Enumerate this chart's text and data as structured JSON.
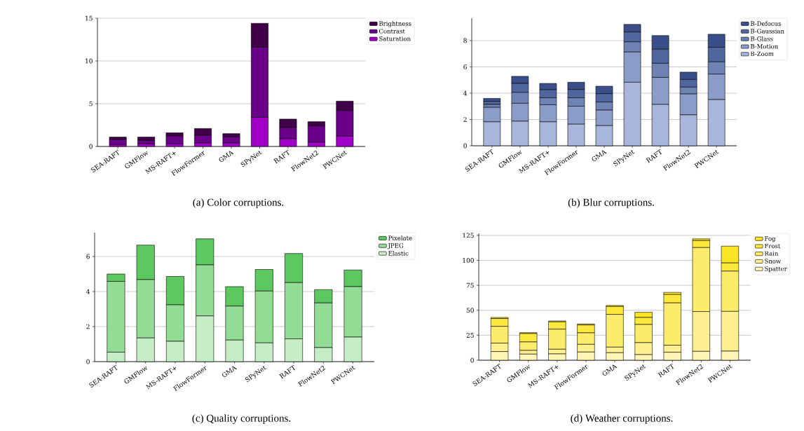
{
  "chart_data": [
    {
      "type": "bar",
      "title": "(a) Color corruptions.",
      "stacked": true,
      "grid": "y",
      "legend": "top right",
      "categories": [
        "SEA-RAFT",
        "GMFlow",
        "MS-RAFT+",
        "FlowFormer",
        "GMA",
        "SPyNet",
        "RAFT",
        "FlowNet2",
        "PWCNet"
      ],
      "ylim": [
        0,
        15
      ],
      "yticks": [
        0,
        5,
        10,
        15
      ],
      "series": [
        {
          "name": "Saturation",
          "color": "#a000c8",
          "values": [
            0.2,
            0.3,
            0.3,
            0.4,
            0.4,
            3.4,
            0.9,
            0.5,
            1.2
          ]
        },
        {
          "name": "Contrast",
          "color": "#6a008a",
          "values": [
            0.6,
            0.4,
            0.9,
            0.9,
            0.7,
            8.2,
            1.3,
            1.9,
            3.0
          ]
        },
        {
          "name": "Brightness",
          "color": "#3f0048",
          "values": [
            0.3,
            0.4,
            0.4,
            0.8,
            0.4,
            2.8,
            1.0,
            0.5,
            1.1
          ]
        }
      ]
    },
    {
      "type": "bar",
      "title": "(b) Blur corruptions.",
      "stacked": true,
      "grid": "y",
      "legend": "top right",
      "categories": [
        "SEA-RAFT",
        "GMFlow",
        "MS-RAFT+",
        "FlowFormer",
        "GMA",
        "SPyNet",
        "RAFT",
        "FlowNet2",
        "PWCNet"
      ],
      "ylim": [
        0,
        9.7
      ],
      "yticks": [
        0,
        2,
        4,
        6,
        8
      ],
      "series": [
        {
          "name": "B-Zoom",
          "color": "#a8b6dc",
          "values": [
            1.82,
            1.87,
            1.82,
            1.64,
            1.53,
            4.83,
            3.14,
            2.35,
            3.51
          ]
        },
        {
          "name": "B-Motion",
          "color": "#8b9cc8",
          "values": [
            1.1,
            1.36,
            1.3,
            1.37,
            1.18,
            2.3,
            2.06,
            1.59,
            1.94
          ]
        },
        {
          "name": "B-Glass",
          "color": "#6e82b4",
          "values": [
            0.22,
            0.83,
            0.53,
            0.64,
            0.62,
            0.77,
            1.07,
            0.52,
            0.93
          ]
        },
        {
          "name": "B-Gaussian",
          "color": "#51669f",
          "values": [
            0.23,
            0.68,
            0.61,
            0.63,
            0.63,
            0.75,
            1.07,
            0.58,
            1.11
          ]
        },
        {
          "name": "B-Defocus",
          "color": "#3a4f8a",
          "values": [
            0.23,
            0.54,
            0.48,
            0.55,
            0.57,
            0.58,
            1.04,
            0.56,
            0.99
          ]
        }
      ]
    },
    {
      "type": "bar",
      "title": "(c) Quality corruptions.",
      "stacked": true,
      "grid": "y",
      "legend": "top right",
      "categories": [
        "SEA-RAFT",
        "GMFlow",
        "MS-RAFT+",
        "FlowFormer",
        "GMA",
        "SPyNet",
        "RAFT",
        "FlowNet2",
        "PWCNet"
      ],
      "ylim": [
        0,
        7.36
      ],
      "yticks": [
        0,
        2,
        4,
        6
      ],
      "series": [
        {
          "name": "Elastic",
          "color": "#c6ecc6",
          "values": [
            0.54,
            1.35,
            1.16,
            2.61,
            1.23,
            1.07,
            1.3,
            0.8,
            1.4
          ]
        },
        {
          "name": "JPEG",
          "color": "#93dc95",
          "values": [
            4.04,
            3.33,
            2.08,
            2.91,
            1.94,
            2.96,
            3.21,
            2.55,
            2.88
          ]
        },
        {
          "name": "Pixelate",
          "color": "#5cc85f",
          "values": [
            0.42,
            1.97,
            1.62,
            1.49,
            1.11,
            1.23,
            1.66,
            0.76,
            0.95
          ]
        }
      ]
    },
    {
      "type": "bar",
      "title": "(d) Weather corruptions.",
      "stacked": true,
      "grid": "y",
      "legend": "top right",
      "categories": [
        "SEA-RAFT",
        "GMFlow",
        "MS-RAFT+",
        "FlowFormer",
        "GMA",
        "SPyNet",
        "RAFT",
        "FlowNet2",
        "PWCNet"
      ],
      "ylim": [
        0,
        127
      ],
      "yticks": [
        0,
        25,
        50,
        75,
        100,
        125
      ],
      "series": [
        {
          "name": "Spatter",
          "color": "#fff5b4",
          "values": [
            8.7,
            6.1,
            6.3,
            8.2,
            7.5,
            5.6,
            8.0,
            8.9,
            9.1
          ]
        },
        {
          "name": "Snow",
          "color": "#fef08f",
          "values": [
            8.4,
            3.7,
            4.7,
            7.7,
            5.6,
            12.0,
            7.0,
            39.8,
            39.8
          ]
        },
        {
          "name": "Rain",
          "color": "#fdec6b",
          "values": [
            16.8,
            8.5,
            20.1,
            11.5,
            32.8,
            18.2,
            42.4,
            64.1,
            40.3
          ]
        },
        {
          "name": "Frost",
          "color": "#fce93d",
          "values": [
            7.8,
            8.4,
            7.3,
            7.9,
            7.9,
            7.0,
            8.4,
            7.0,
            8.2
          ]
        },
        {
          "name": "Fog",
          "color": "#fbe424",
          "values": [
            1.1,
            0.9,
            0.9,
            1.0,
            1.0,
            5.2,
            2.1,
            1.7,
            16.8
          ]
        }
      ]
    }
  ]
}
